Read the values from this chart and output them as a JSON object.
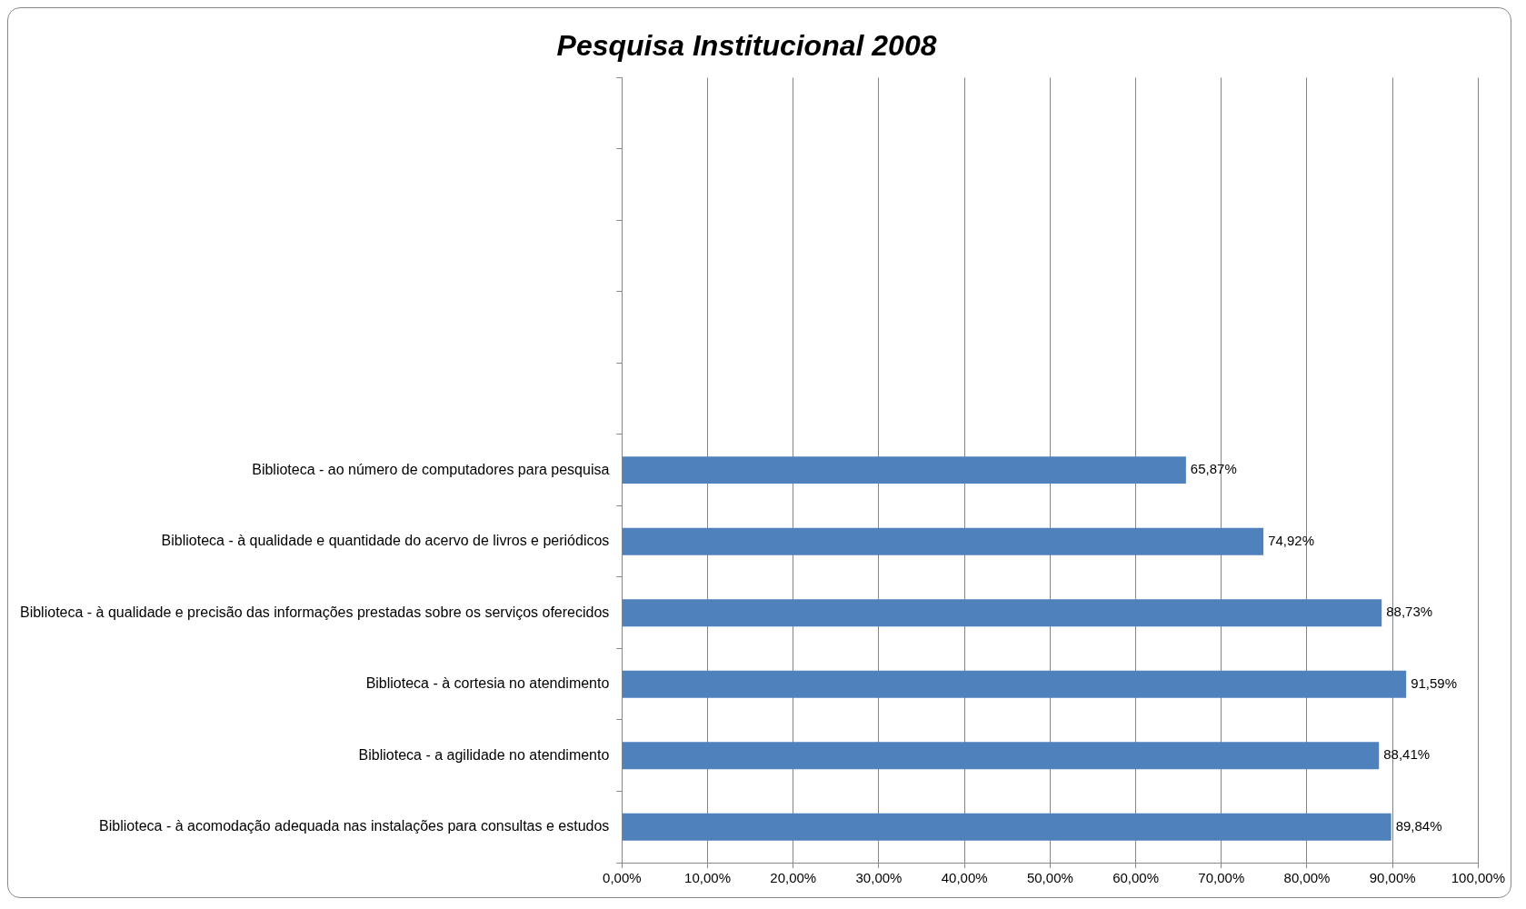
{
  "chart_data": {
    "type": "bar",
    "orientation": "horizontal",
    "title": "Pesquisa Institucional 2008",
    "categories": [
      null,
      null,
      null,
      null,
      null,
      "Biblioteca - ao número de computadores para pesquisa",
      "Biblioteca - à qualidade e quantidade do acervo de livros e periódicos",
      "Biblioteca - à qualidade e precisão das informações prestadas sobre os serviços oferecidos",
      "Biblioteca - à cortesia no atendimento",
      "Biblioteca - a agilidade no atendimento",
      "Biblioteca - à acomodação adequada nas instalações para consultas e estudos"
    ],
    "values": [
      null,
      null,
      null,
      null,
      null,
      65.87,
      74.92,
      88.73,
      91.59,
      88.41,
      89.84
    ],
    "value_labels": [
      null,
      null,
      null,
      null,
      null,
      "65,87%",
      "74,92%",
      "88,73%",
      "91,59%",
      "88,41%",
      "89,84%"
    ],
    "color": "#4f81bd",
    "xlim": [
      0,
      100
    ],
    "xticks": [
      {
        "value": 0,
        "label": "0,00%"
      },
      {
        "value": 10,
        "label": "10,00%"
      },
      {
        "value": 20,
        "label": "20,00%"
      },
      {
        "value": 30,
        "label": "30,00%"
      },
      {
        "value": 40,
        "label": "40,00%"
      },
      {
        "value": 50,
        "label": "50,00%"
      },
      {
        "value": 60,
        "label": "60,00%"
      },
      {
        "value": 70,
        "label": "70,00%"
      },
      {
        "value": 80,
        "label": "80,00%"
      },
      {
        "value": 90,
        "label": "90,00%"
      },
      {
        "value": 100,
        "label": "100,00%"
      }
    ],
    "grid": "x"
  }
}
